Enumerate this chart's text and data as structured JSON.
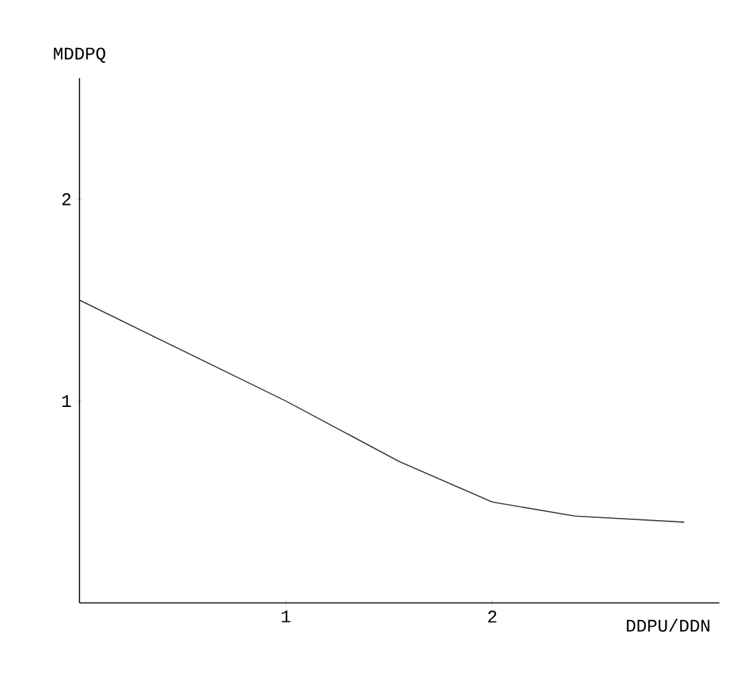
{
  "chart_data": {
    "type": "line",
    "xlabel": "DDPU/DDN",
    "ylabel": "MDDPQ",
    "x": [
      0,
      0.5,
      1,
      1.55,
      2,
      2.4,
      2.93
    ],
    "series": [
      {
        "color": "#333333",
        "values": [
          1.5,
          1.25,
          1.0,
          0.7,
          0.5,
          0.43,
          0.4
        ]
      }
    ],
    "xlim": [
      0,
      3.1
    ],
    "ylim": [
      0,
      2.6
    ],
    "xticks": [
      1,
      2
    ],
    "yticks": [
      1,
      2
    ],
    "marker": "none",
    "line_style": "solid"
  }
}
